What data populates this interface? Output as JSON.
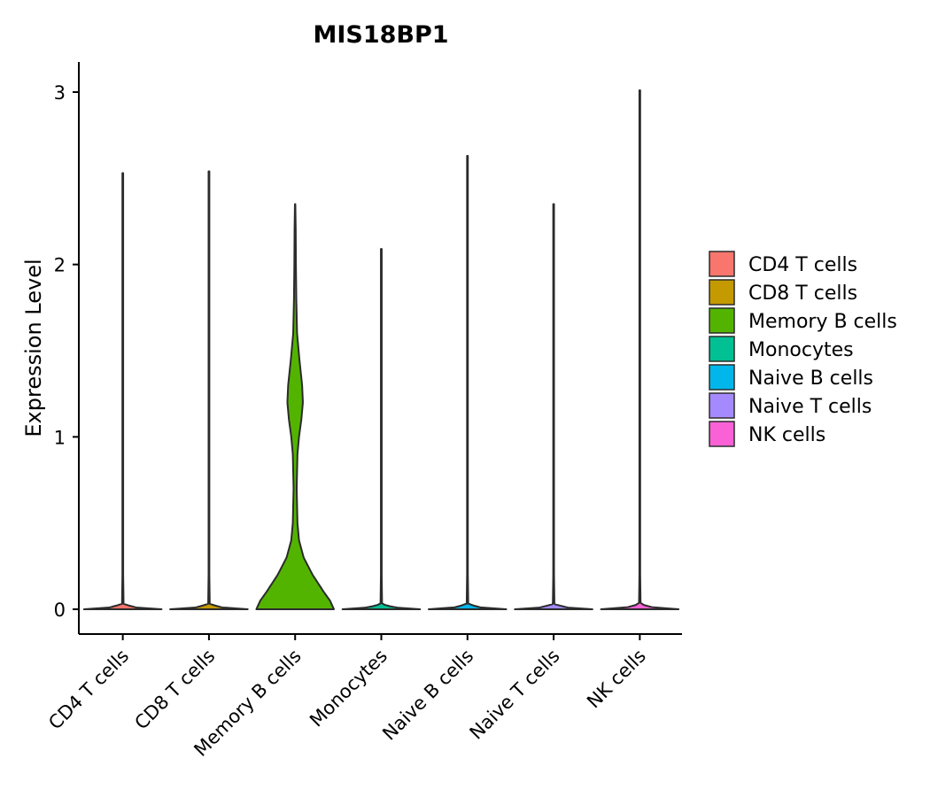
{
  "chart_data": {
    "type": "violin",
    "title": "MIS18BP1",
    "xlabel": "",
    "ylabel": "Expression Level",
    "ylim": [
      -0.15,
      3.17
    ],
    "yticks": [
      0,
      1,
      2,
      3
    ],
    "categories": [
      "CD4 T cells",
      "CD8 T cells",
      "Memory B cells",
      "Monocytes",
      "Naive B cells",
      "Naive T cells",
      "NK cells"
    ],
    "colors": [
      "#F8766D",
      "#C49A00",
      "#53B400",
      "#00C094",
      "#00B6EB",
      "#A58AFF",
      "#FB61D7"
    ],
    "max_values": [
      2.53,
      2.54,
      2.35,
      2.09,
      2.63,
      2.35,
      3.01
    ],
    "density_profiles": [
      [
        [
          0,
          1.0
        ],
        [
          0.01,
          0.35
        ],
        [
          0.03,
          0.02
        ],
        [
          0.2,
          0.01
        ],
        [
          2.53,
          0.01
        ]
      ],
      [
        [
          0,
          1.0
        ],
        [
          0.01,
          0.35
        ],
        [
          0.03,
          0.02
        ],
        [
          0.2,
          0.01
        ],
        [
          2.54,
          0.01
        ]
      ],
      [
        [
          0,
          1.0
        ],
        [
          0.05,
          0.9
        ],
        [
          0.1,
          0.74
        ],
        [
          0.2,
          0.45
        ],
        [
          0.3,
          0.22
        ],
        [
          0.4,
          0.1
        ],
        [
          0.5,
          0.06
        ],
        [
          0.7,
          0.04
        ],
        [
          0.9,
          0.06
        ],
        [
          1.0,
          0.1
        ],
        [
          1.1,
          0.16
        ],
        [
          1.2,
          0.2
        ],
        [
          1.3,
          0.18
        ],
        [
          1.45,
          0.11
        ],
        [
          1.6,
          0.05
        ],
        [
          1.8,
          0.03
        ],
        [
          2.0,
          0.02
        ],
        [
          2.2,
          0.015
        ],
        [
          2.35,
          0.005
        ]
      ],
      [
        [
          0,
          1.0
        ],
        [
          0.01,
          0.35
        ],
        [
          0.03,
          0.02
        ],
        [
          0.2,
          0.01
        ],
        [
          2.09,
          0.01
        ]
      ],
      [
        [
          0,
          1.0
        ],
        [
          0.01,
          0.35
        ],
        [
          0.03,
          0.02
        ],
        [
          0.2,
          0.01
        ],
        [
          2.63,
          0.01
        ]
      ],
      [
        [
          0,
          1.0
        ],
        [
          0.01,
          0.35
        ],
        [
          0.03,
          0.02
        ],
        [
          0.2,
          0.01
        ],
        [
          2.35,
          0.01
        ]
      ],
      [
        [
          0,
          1.0
        ],
        [
          0.01,
          0.35
        ],
        [
          0.03,
          0.02
        ],
        [
          0.2,
          0.01
        ],
        [
          3.01,
          0.01
        ]
      ]
    ],
    "legend": {
      "position": "right",
      "entries": [
        "CD4 T cells",
        "CD8 T cells",
        "Memory B cells",
        "Monocytes",
        "Naive B cells",
        "Naive T cells",
        "NK cells"
      ]
    }
  }
}
